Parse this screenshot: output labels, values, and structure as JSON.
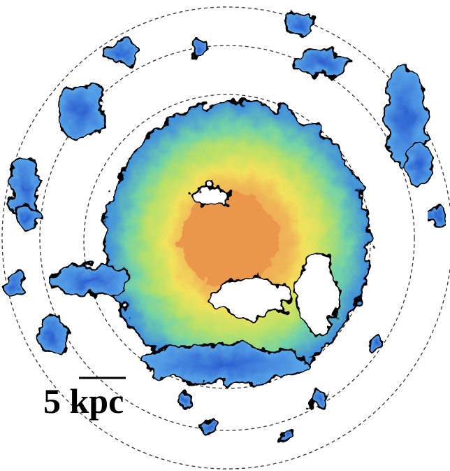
{
  "scale_bar": {
    "label": "5 kpc"
  }
}
